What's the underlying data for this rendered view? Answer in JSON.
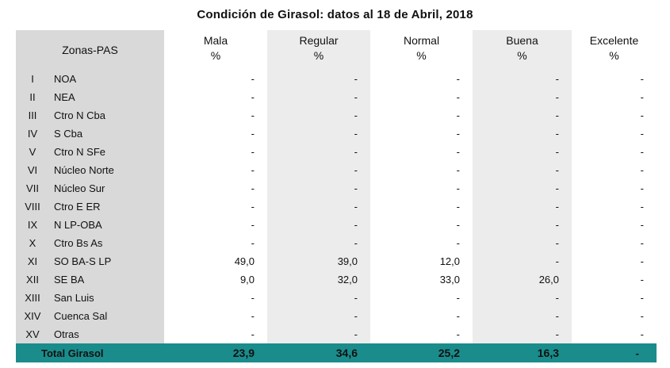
{
  "title": "Condición de Girasol: datos al 18 de Abril, 2018",
  "header": {
    "zonas": "Zonas-PAS",
    "columns": [
      {
        "label": "Mala",
        "unit": "%"
      },
      {
        "label": "Regular",
        "unit": "%"
      },
      {
        "label": "Normal",
        "unit": "%"
      },
      {
        "label": "Buena",
        "unit": "%"
      },
      {
        "label": "Excelente",
        "unit": "%"
      }
    ]
  },
  "rows": [
    {
      "num": "I",
      "name": "NOA",
      "values": [
        "-",
        "-",
        "-",
        "-",
        "-"
      ]
    },
    {
      "num": "II",
      "name": "NEA",
      "values": [
        "-",
        "-",
        "-",
        "-",
        "-"
      ]
    },
    {
      "num": "III",
      "name": "Ctro N Cba",
      "values": [
        "-",
        "-",
        "-",
        "-",
        "-"
      ]
    },
    {
      "num": "IV",
      "name": "S Cba",
      "values": [
        "-",
        "-",
        "-",
        "-",
        "-"
      ]
    },
    {
      "num": "V",
      "name": "Ctro N SFe",
      "values": [
        "-",
        "-",
        "-",
        "-",
        "-"
      ]
    },
    {
      "num": "VI",
      "name": "Núcleo Norte",
      "values": [
        "-",
        "-",
        "-",
        "-",
        "-"
      ]
    },
    {
      "num": "VII",
      "name": "Núcleo Sur",
      "values": [
        "-",
        "-",
        "-",
        "-",
        "-"
      ]
    },
    {
      "num": "VIII",
      "name": "Ctro E ER",
      "values": [
        "-",
        "-",
        "-",
        "-",
        "-"
      ]
    },
    {
      "num": "IX",
      "name": "N LP-OBA",
      "values": [
        "-",
        "-",
        "-",
        "-",
        "-"
      ]
    },
    {
      "num": "X",
      "name": "Ctro Bs As",
      "values": [
        "-",
        "-",
        "-",
        "-",
        "-"
      ]
    },
    {
      "num": "XI",
      "name": "SO BA-S LP",
      "values": [
        "49,0",
        "39,0",
        "12,0",
        "-",
        "-"
      ]
    },
    {
      "num": "XII",
      "name": "SE BA",
      "values": [
        "9,0",
        "32,0",
        "33,0",
        "26,0",
        "-"
      ]
    },
    {
      "num": "XIII",
      "name": "San Luis",
      "values": [
        "-",
        "-",
        "-",
        "-",
        "-"
      ]
    },
    {
      "num": "XIV",
      "name": "Cuenca Sal",
      "values": [
        "-",
        "-",
        "-",
        "-",
        "-"
      ]
    },
    {
      "num": "XV",
      "name": "Otras",
      "values": [
        "-",
        "-",
        "-",
        "-",
        "-"
      ]
    }
  ],
  "total": {
    "label": "Total Girasol",
    "values": [
      "23,9",
      "34,6",
      "25,2",
      "16,3",
      "-"
    ]
  },
  "colors": {
    "total_row": "#1a8c8c",
    "zona_column": "#d9d9d9",
    "stripe": "#ececec"
  }
}
